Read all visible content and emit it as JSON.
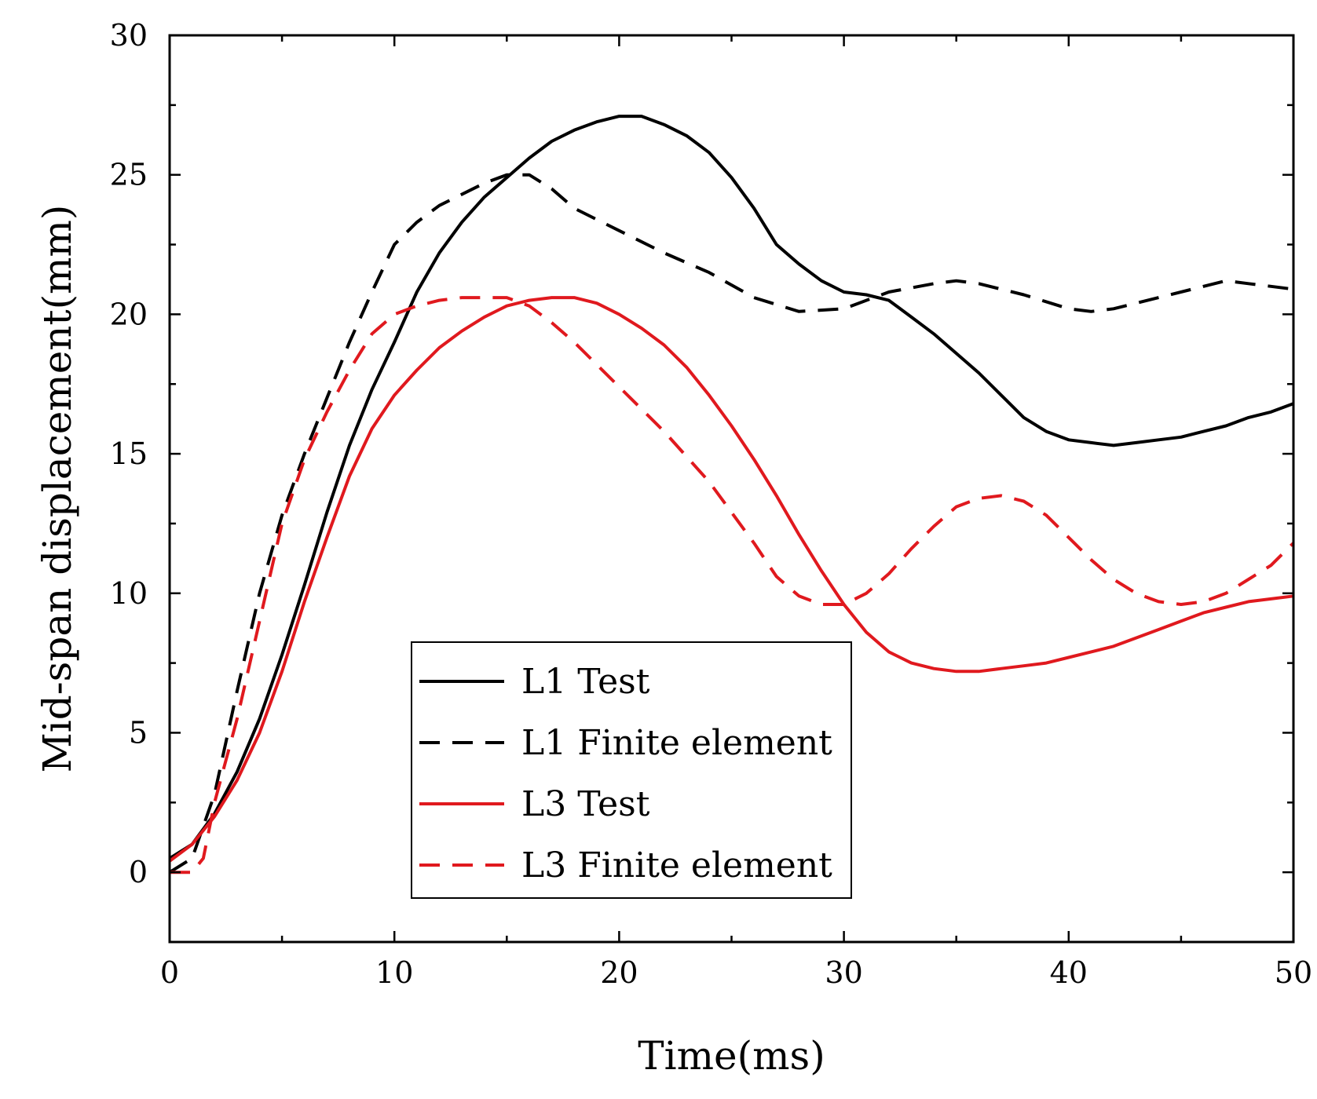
{
  "chart_data": {
    "type": "line",
    "title": "",
    "xlabel": "Time(ms)",
    "ylabel": "Mid-span displacement(mm)",
    "xlim": [
      0,
      50
    ],
    "ylim": [
      -2.5,
      30
    ],
    "xticks": [
      0,
      10,
      20,
      30,
      40,
      50
    ],
    "yticks": [
      0,
      5,
      10,
      15,
      20,
      25,
      30
    ],
    "grid": false,
    "legend_position": "bottom-center",
    "series": [
      {
        "name": "L1 Test",
        "color": "#000000",
        "style": "solid",
        "x": [
          0,
          1,
          2,
          3,
          4,
          5,
          6,
          7,
          8,
          9,
          10,
          11,
          12,
          13,
          14,
          15,
          16,
          17,
          18,
          19,
          20,
          21,
          22,
          23,
          24,
          25,
          26,
          27,
          28,
          29,
          30,
          31,
          32,
          33,
          34,
          35,
          36,
          37,
          38,
          39,
          40,
          41,
          42,
          43,
          44,
          45,
          46,
          47,
          48,
          49,
          50
        ],
        "y": [
          0.5,
          1.0,
          2.1,
          3.6,
          5.5,
          7.8,
          10.3,
          12.9,
          15.3,
          17.3,
          19.0,
          20.8,
          22.2,
          23.3,
          24.2,
          24.9,
          25.6,
          26.2,
          26.6,
          26.9,
          27.1,
          27.1,
          26.8,
          26.4,
          25.8,
          24.9,
          23.8,
          22.5,
          21.8,
          21.2,
          20.8,
          20.7,
          20.5,
          19.9,
          19.3,
          18.6,
          17.9,
          17.1,
          16.3,
          15.8,
          15.5,
          15.4,
          15.3,
          15.4,
          15.5,
          15.6,
          15.8,
          16.0,
          16.3,
          16.5,
          16.8
        ]
      },
      {
        "name": "L1 Finite element",
        "color": "#000000",
        "style": "dashed",
        "x": [
          0,
          1,
          2,
          3,
          4,
          5,
          6,
          7,
          8,
          9,
          10,
          11,
          12,
          13,
          14,
          15,
          16,
          17,
          18,
          19,
          20,
          22,
          24,
          26,
          28,
          30,
          32,
          34,
          35,
          36,
          38,
          40,
          41,
          42,
          44,
          46,
          47,
          48,
          49,
          50
        ],
        "y": [
          0,
          0.5,
          2.8,
          6.5,
          10.0,
          12.8,
          15.0,
          17.0,
          19.0,
          20.8,
          22.5,
          23.3,
          23.9,
          24.3,
          24.7,
          25.0,
          25.0,
          24.5,
          23.8,
          23.4,
          23.0,
          22.2,
          21.5,
          20.6,
          20.1,
          20.2,
          20.8,
          21.1,
          21.2,
          21.1,
          20.7,
          20.2,
          20.1,
          20.2,
          20.6,
          21.0,
          21.2,
          21.1,
          21.0,
          20.9
        ]
      },
      {
        "name": "L3 Test",
        "color": "#e0191e",
        "style": "solid",
        "x": [
          0,
          1,
          2,
          3,
          4,
          5,
          6,
          7,
          8,
          9,
          10,
          11,
          12,
          13,
          14,
          15,
          16,
          17,
          18,
          19,
          20,
          21,
          22,
          23,
          24,
          25,
          26,
          27,
          28,
          29,
          30,
          31,
          32,
          33,
          34,
          35,
          36,
          37,
          38,
          39,
          40,
          41,
          42,
          43,
          44,
          45,
          46,
          47,
          48,
          49,
          50
        ],
        "y": [
          0.4,
          1.0,
          2.0,
          3.3,
          5.0,
          7.2,
          9.7,
          12.0,
          14.2,
          15.9,
          17.1,
          18.0,
          18.8,
          19.4,
          19.9,
          20.3,
          20.5,
          20.6,
          20.6,
          20.4,
          20.0,
          19.5,
          18.9,
          18.1,
          17.1,
          16.0,
          14.8,
          13.5,
          12.1,
          10.8,
          9.6,
          8.6,
          7.9,
          7.5,
          7.3,
          7.2,
          7.2,
          7.3,
          7.4,
          7.5,
          7.7,
          7.9,
          8.1,
          8.4,
          8.7,
          9.0,
          9.3,
          9.5,
          9.7,
          9.8,
          9.9
        ]
      },
      {
        "name": "L3 Finite element",
        "color": "#e0191e",
        "style": "dashed",
        "x": [
          0,
          1,
          1.5,
          2,
          3,
          4,
          5,
          6,
          7,
          8,
          9,
          10,
          11,
          12,
          13,
          14,
          15,
          16,
          17,
          18,
          20,
          22,
          24,
          26,
          27,
          28,
          29,
          30,
          31,
          32,
          33,
          34,
          35,
          36,
          37,
          38,
          39,
          40,
          41,
          42,
          43,
          44,
          45,
          46,
          47,
          48,
          49,
          50
        ],
        "y": [
          0,
          0,
          0.5,
          2.5,
          5.5,
          9.0,
          12.5,
          14.8,
          16.5,
          18.0,
          19.3,
          20.0,
          20.3,
          20.5,
          20.6,
          20.6,
          20.6,
          20.3,
          19.7,
          19.0,
          17.4,
          15.8,
          14.0,
          11.8,
          10.6,
          9.9,
          9.6,
          9.6,
          10.0,
          10.7,
          11.6,
          12.4,
          13.1,
          13.4,
          13.5,
          13.3,
          12.8,
          12.0,
          11.2,
          10.5,
          10.0,
          9.7,
          9.6,
          9.7,
          10.0,
          10.5,
          11.0,
          11.8
        ]
      }
    ]
  }
}
